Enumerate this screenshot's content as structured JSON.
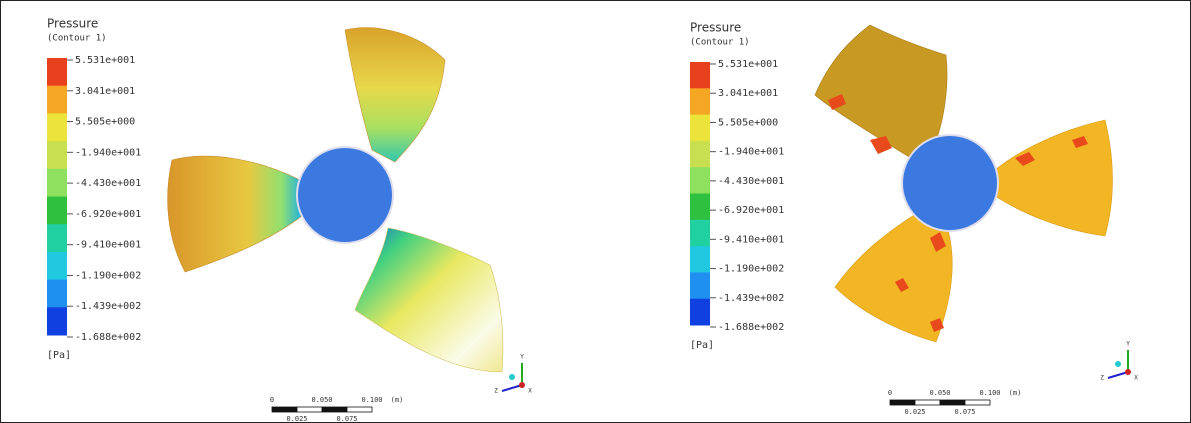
{
  "panels": [
    {
      "legend": {
        "title": "Pressure",
        "subtitle": "(Contour  1)",
        "levels": [
          "5.531e+001",
          "3.041e+001",
          "5.505e+000",
          "-1.940e+001",
          "-4.430e+001",
          "-6.920e+001",
          "-9.410e+001",
          "-1.190e+002",
          "-1.439e+002",
          "-1.688e+002"
        ],
        "unit": "[Pa]"
      },
      "scale_bar": {
        "labels": [
          "0",
          "0.050",
          "0.100",
          "(m)"
        ],
        "sublabels": [
          "0.025",
          "0.075"
        ]
      },
      "axes": {
        "labels": [
          "Y",
          "Z",
          "X"
        ]
      }
    },
    {
      "legend": {
        "title": "Pressure",
        "subtitle": "(Contour  1)",
        "levels": [
          "5.531e+001",
          "3.041e+001",
          "5.505e+000",
          "-1.940e+001",
          "-4.430e+001",
          "-6.920e+001",
          "-9.410e+001",
          "-1.190e+002",
          "-1.439e+002",
          "-1.688e+002"
        ],
        "unit": "[Pa]"
      },
      "scale_bar": {
        "labels": [
          "0",
          "0.050",
          "0.100",
          "(m)"
        ],
        "sublabels": [
          "0.025",
          "0.075"
        ]
      },
      "axes": {
        "labels": [
          "Y",
          "Z",
          "X"
        ]
      }
    }
  ]
}
